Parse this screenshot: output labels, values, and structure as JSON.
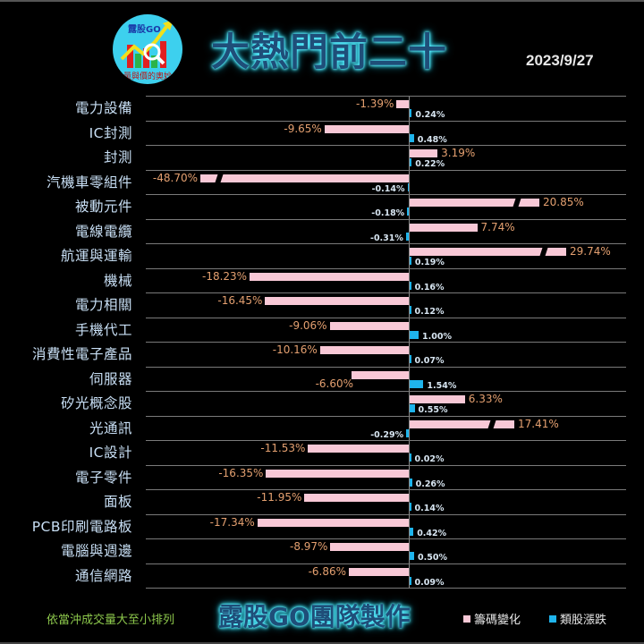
{
  "header": {
    "logo": {
      "brand": "露股GO",
      "tagline": "量與價的奧妙"
    },
    "title": "大熱門前二十",
    "date": "2023/9/27"
  },
  "footer": {
    "note": "依當沖成交量大至小排列",
    "credit": "露股GO團隊製作"
  },
  "colors": {
    "background": "#000000",
    "chip_change": "#f8c8d6",
    "sector_change": "#1fb4ec",
    "chip_label": "#e4a070",
    "sector_label": "#d8e6f2",
    "category_label": "#c8dff5",
    "note": "#8dc84c",
    "title_fill": "#1f4e79",
    "title_glow": "#5ff0ff"
  },
  "chart_data": {
    "type": "bar",
    "orientation": "horizontal",
    "title": "大熱門前二十",
    "subtitle": "2023/9/27",
    "xlabel": "",
    "ylabel": "",
    "grid": true,
    "legend_position": "bottom-right",
    "categories": [
      "電力設備",
      "IC封測",
      "封測",
      "汽機車零組件",
      "被動元件",
      "電線電纜",
      "航運與運輸",
      "機械",
      "電力相關",
      "手機代工",
      "消費性電子產品",
      "伺服器",
      "矽光概念股",
      "光通訊",
      "IC設計",
      "電子零件",
      "面板",
      "PCB印刷電路板",
      "電腦與週邊",
      "通信網路"
    ],
    "series": [
      {
        "name": "籌碼變化",
        "color": "#f8c8d6",
        "values": [
          -1.39,
          -9.65,
          3.19,
          -48.7,
          20.85,
          7.74,
          29.74,
          -18.23,
          -16.45,
          -9.06,
          -10.16,
          -6.6,
          6.33,
          17.41,
          -11.53,
          -16.35,
          -11.95,
          -17.34,
          -8.97,
          -6.86
        ],
        "labels": [
          "-1.39%",
          "-9.65%",
          "3.19%",
          "-48.70%",
          "20.85%",
          "7.74%",
          "29.74%",
          "-18.23%",
          "-16.45%",
          "-9.06%",
          "-10.16%",
          "-6.60%",
          "6.33%",
          "17.41%",
          "-11.53%",
          "-16.35%",
          "-11.95%",
          "-17.34%",
          "-8.97%",
          "-6.86%"
        ]
      },
      {
        "name": "類股漲跌",
        "color": "#1fb4ec",
        "values": [
          0.24,
          0.48,
          0.22,
          -0.14,
          -0.18,
          -0.31,
          0.19,
          0.16,
          0.12,
          1.0,
          0.07,
          1.54,
          0.55,
          -0.29,
          0.02,
          0.26,
          0.14,
          0.42,
          0.5,
          0.09
        ],
        "labels": [
          "0.24%",
          "0.48%",
          "0.22%",
          "-0.14%",
          "-0.18%",
          "-0.31%",
          "0.19%",
          "0.16%",
          "0.12%",
          "1.00%",
          "0.07%",
          "1.54%",
          "0.55%",
          "-0.29%",
          "0.02%",
          "0.26%",
          "0.14%",
          "0.42%",
          "0.50%",
          "0.09%"
        ]
      }
    ],
    "broken_bars": [
      "汽機車零組件",
      "被動元件",
      "航運與運輸",
      "光通訊"
    ]
  },
  "legend": [
    {
      "label": "籌碼變化",
      "color": "#f8c8d6"
    },
    {
      "label": "類股漲跌",
      "color": "#1fb4ec"
    }
  ]
}
